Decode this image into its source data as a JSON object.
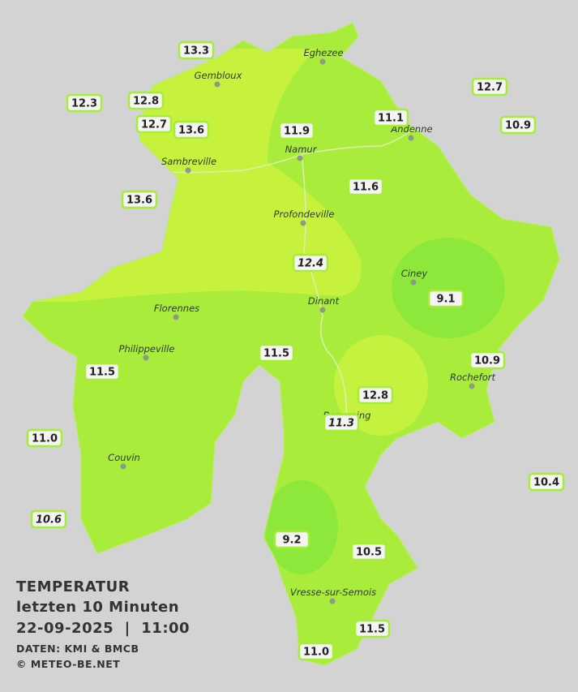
{
  "title": [
    "TEMPERATUR",
    "letzten 10 Minuten",
    "22-09-2025  |  11:00"
  ],
  "credits": [
    "DATEN: KMI & BMCB",
    "© METEO-BE.NET"
  ],
  "cities": [
    "Eghezee",
    "Gembloux",
    "Andenne",
    "Namur",
    "Sambreville",
    "Profondeville",
    "Ciney",
    "Florennes",
    "Dinant",
    "Philippeville",
    "Rochefort",
    "Beauraing",
    "Couvin",
    "Vresse-sur-Semois"
  ],
  "stations": [
    "13.3",
    "12.3",
    "12.8",
    "12.7",
    "13.6",
    "13.6",
    "11.9",
    "11.1",
    "12.7",
    "10.9",
    "11.6",
    "12.4",
    "9.1",
    "11.5",
    "11.5",
    "10.9",
    "12.8",
    "11.3",
    "11.0",
    "10.4",
    "10.6",
    "9.2",
    "10.5",
    "11.5",
    "11.0"
  ]
}
